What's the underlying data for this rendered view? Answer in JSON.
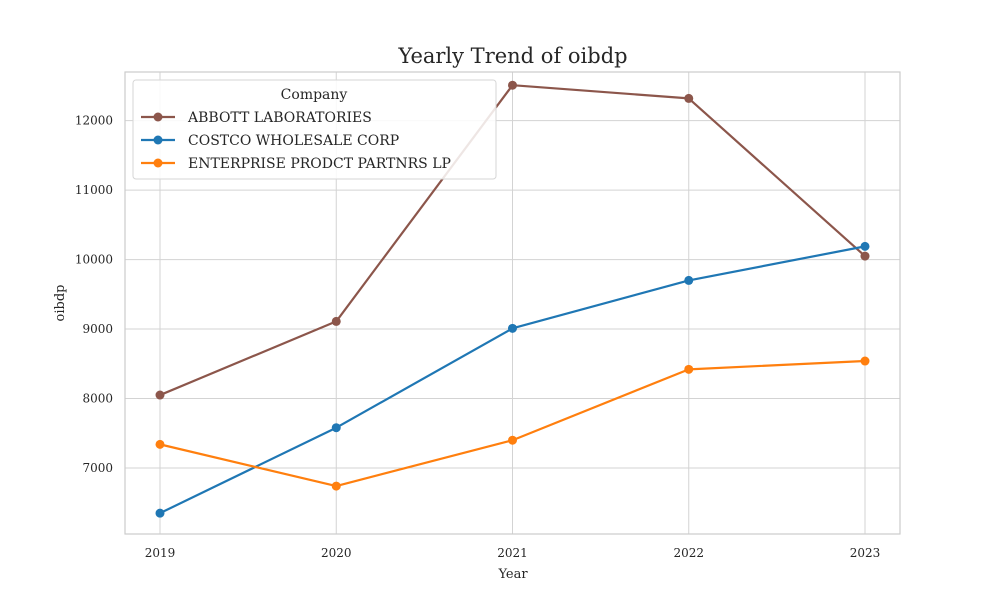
{
  "chart_data": {
    "type": "line",
    "title": "Yearly Trend of oibdp",
    "xlabel": "Year",
    "ylabel": "oibdp",
    "x": [
      "2019",
      "2020",
      "2021",
      "2022",
      "2023"
    ],
    "ylim": [
      6050,
      12700
    ],
    "yticks": [
      7000,
      8000,
      9000,
      10000,
      11000,
      12000
    ],
    "yticks_labels": [
      "7000",
      "8000",
      "9000",
      "10000",
      "11000",
      "12000"
    ],
    "grid": true,
    "legend": {
      "title": "Company",
      "placement": "upper-left"
    },
    "series": [
      {
        "name": "ABBOTT LABORATORIES",
        "color": "#8c564b",
        "values": [
          8050,
          9110,
          12510,
          12320,
          10050
        ]
      },
      {
        "name": "COSTCO WHOLESALE CORP",
        "color": "#1f77b4",
        "values": [
          6350,
          7580,
          9010,
          9700,
          10190
        ]
      },
      {
        "name": "ENTERPRISE PRODCT PARTNRS LP",
        "color": "#ff7f0e",
        "values": [
          7340,
          6740,
          7400,
          8420,
          8540
        ]
      }
    ]
  }
}
